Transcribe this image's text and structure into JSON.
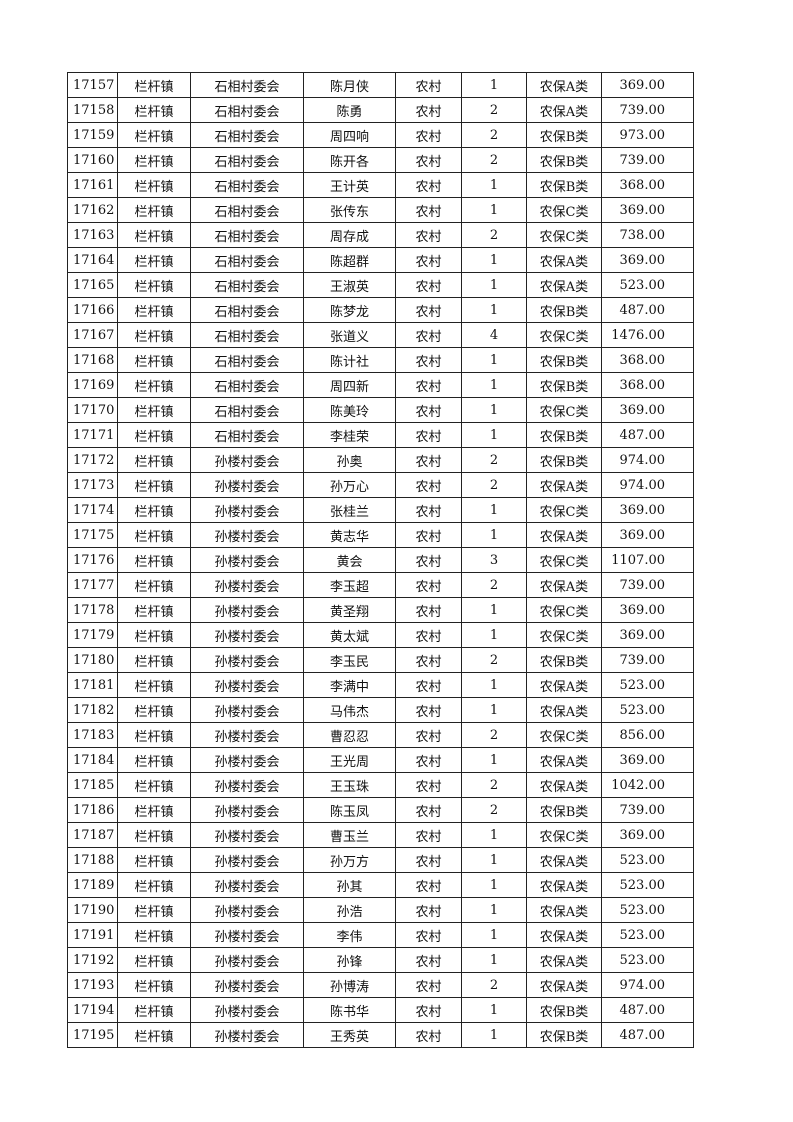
{
  "rows": [
    [
      "17157",
      "栏杆镇",
      "石相村委会",
      "陈月侠",
      "农村",
      "1",
      "农保A类",
      "369.00"
    ],
    [
      "17158",
      "栏杆镇",
      "石相村委会",
      "陈勇",
      "农村",
      "2",
      "农保A类",
      "739.00"
    ],
    [
      "17159",
      "栏杆镇",
      "石相村委会",
      "周四响",
      "农村",
      "2",
      "农保B类",
      "973.00"
    ],
    [
      "17160",
      "栏杆镇",
      "石相村委会",
      "陈开各",
      "农村",
      "2",
      "农保B类",
      "739.00"
    ],
    [
      "17161",
      "栏杆镇",
      "石相村委会",
      "王计英",
      "农村",
      "1",
      "农保B类",
      "368.00"
    ],
    [
      "17162",
      "栏杆镇",
      "石相村委会",
      "张传东",
      "农村",
      "1",
      "农保C类",
      "369.00"
    ],
    [
      "17163",
      "栏杆镇",
      "石相村委会",
      "周存成",
      "农村",
      "2",
      "农保C类",
      "738.00"
    ],
    [
      "17164",
      "栏杆镇",
      "石相村委会",
      "陈超群",
      "农村",
      "1",
      "农保A类",
      "369.00"
    ],
    [
      "17165",
      "栏杆镇",
      "石相村委会",
      "王淑英",
      "农村",
      "1",
      "农保A类",
      "523.00"
    ],
    [
      "17166",
      "栏杆镇",
      "石相村委会",
      "陈梦龙",
      "农村",
      "1",
      "农保B类",
      "487.00"
    ],
    [
      "17167",
      "栏杆镇",
      "石相村委会",
      "张道义",
      "农村",
      "4",
      "农保C类",
      "1476.00"
    ],
    [
      "17168",
      "栏杆镇",
      "石相村委会",
      "陈计社",
      "农村",
      "1",
      "农保B类",
      "368.00"
    ],
    [
      "17169",
      "栏杆镇",
      "石相村委会",
      "周四新",
      "农村",
      "1",
      "农保B类",
      "368.00"
    ],
    [
      "17170",
      "栏杆镇",
      "石相村委会",
      "陈美玲",
      "农村",
      "1",
      "农保C类",
      "369.00"
    ],
    [
      "17171",
      "栏杆镇",
      "石相村委会",
      "李桂荣",
      "农村",
      "1",
      "农保B类",
      "487.00"
    ],
    [
      "17172",
      "栏杆镇",
      "孙楼村委会",
      "孙奥",
      "农村",
      "2",
      "农保B类",
      "974.00"
    ],
    [
      "17173",
      "栏杆镇",
      "孙楼村委会",
      "孙万心",
      "农村",
      "2",
      "农保A类",
      "974.00"
    ],
    [
      "17174",
      "栏杆镇",
      "孙楼村委会",
      "张桂兰",
      "农村",
      "1",
      "农保C类",
      "369.00"
    ],
    [
      "17175",
      "栏杆镇",
      "孙楼村委会",
      "黄志华",
      "农村",
      "1",
      "农保A类",
      "369.00"
    ],
    [
      "17176",
      "栏杆镇",
      "孙楼村委会",
      "黄会",
      "农村",
      "3",
      "农保C类",
      "1107.00"
    ],
    [
      "17177",
      "栏杆镇",
      "孙楼村委会",
      "李玉超",
      "农村",
      "2",
      "农保A类",
      "739.00"
    ],
    [
      "17178",
      "栏杆镇",
      "孙楼村委会",
      "黄圣翔",
      "农村",
      "1",
      "农保C类",
      "369.00"
    ],
    [
      "17179",
      "栏杆镇",
      "孙楼村委会",
      "黄太斌",
      "农村",
      "1",
      "农保C类",
      "369.00"
    ],
    [
      "17180",
      "栏杆镇",
      "孙楼村委会",
      "李玉民",
      "农村",
      "2",
      "农保B类",
      "739.00"
    ],
    [
      "17181",
      "栏杆镇",
      "孙楼村委会",
      "李满中",
      "农村",
      "1",
      "农保A类",
      "523.00"
    ],
    [
      "17182",
      "栏杆镇",
      "孙楼村委会",
      "马伟杰",
      "农村",
      "1",
      "农保A类",
      "523.00"
    ],
    [
      "17183",
      "栏杆镇",
      "孙楼村委会",
      "曹忍忍",
      "农村",
      "2",
      "农保C类",
      "856.00"
    ],
    [
      "17184",
      "栏杆镇",
      "孙楼村委会",
      "王光周",
      "农村",
      "1",
      "农保A类",
      "369.00"
    ],
    [
      "17185",
      "栏杆镇",
      "孙楼村委会",
      "王玉珠",
      "农村",
      "2",
      "农保A类",
      "1042.00"
    ],
    [
      "17186",
      "栏杆镇",
      "孙楼村委会",
      "陈玉凤",
      "农村",
      "2",
      "农保B类",
      "739.00"
    ],
    [
      "17187",
      "栏杆镇",
      "孙楼村委会",
      "曹玉兰",
      "农村",
      "1",
      "农保C类",
      "369.00"
    ],
    [
      "17188",
      "栏杆镇",
      "孙楼村委会",
      "孙万方",
      "农村",
      "1",
      "农保A类",
      "523.00"
    ],
    [
      "17189",
      "栏杆镇",
      "孙楼村委会",
      "孙其",
      "农村",
      "1",
      "农保A类",
      "523.00"
    ],
    [
      "17190",
      "栏杆镇",
      "孙楼村委会",
      "孙浩",
      "农村",
      "1",
      "农保A类",
      "523.00"
    ],
    [
      "17191",
      "栏杆镇",
      "孙楼村委会",
      "李伟",
      "农村",
      "1",
      "农保A类",
      "523.00"
    ],
    [
      "17192",
      "栏杆镇",
      "孙楼村委会",
      "孙锋",
      "农村",
      "1",
      "农保A类",
      "523.00"
    ],
    [
      "17193",
      "栏杆镇",
      "孙楼村委会",
      "孙博涛",
      "农村",
      "2",
      "农保A类",
      "974.00"
    ],
    [
      "17194",
      "栏杆镇",
      "孙楼村委会",
      "陈书华",
      "农村",
      "1",
      "农保B类",
      "487.00"
    ],
    [
      "17195",
      "栏杆镇",
      "孙楼村委会",
      "王秀英",
      "农村",
      "1",
      "农保B类",
      "487.00"
    ]
  ]
}
